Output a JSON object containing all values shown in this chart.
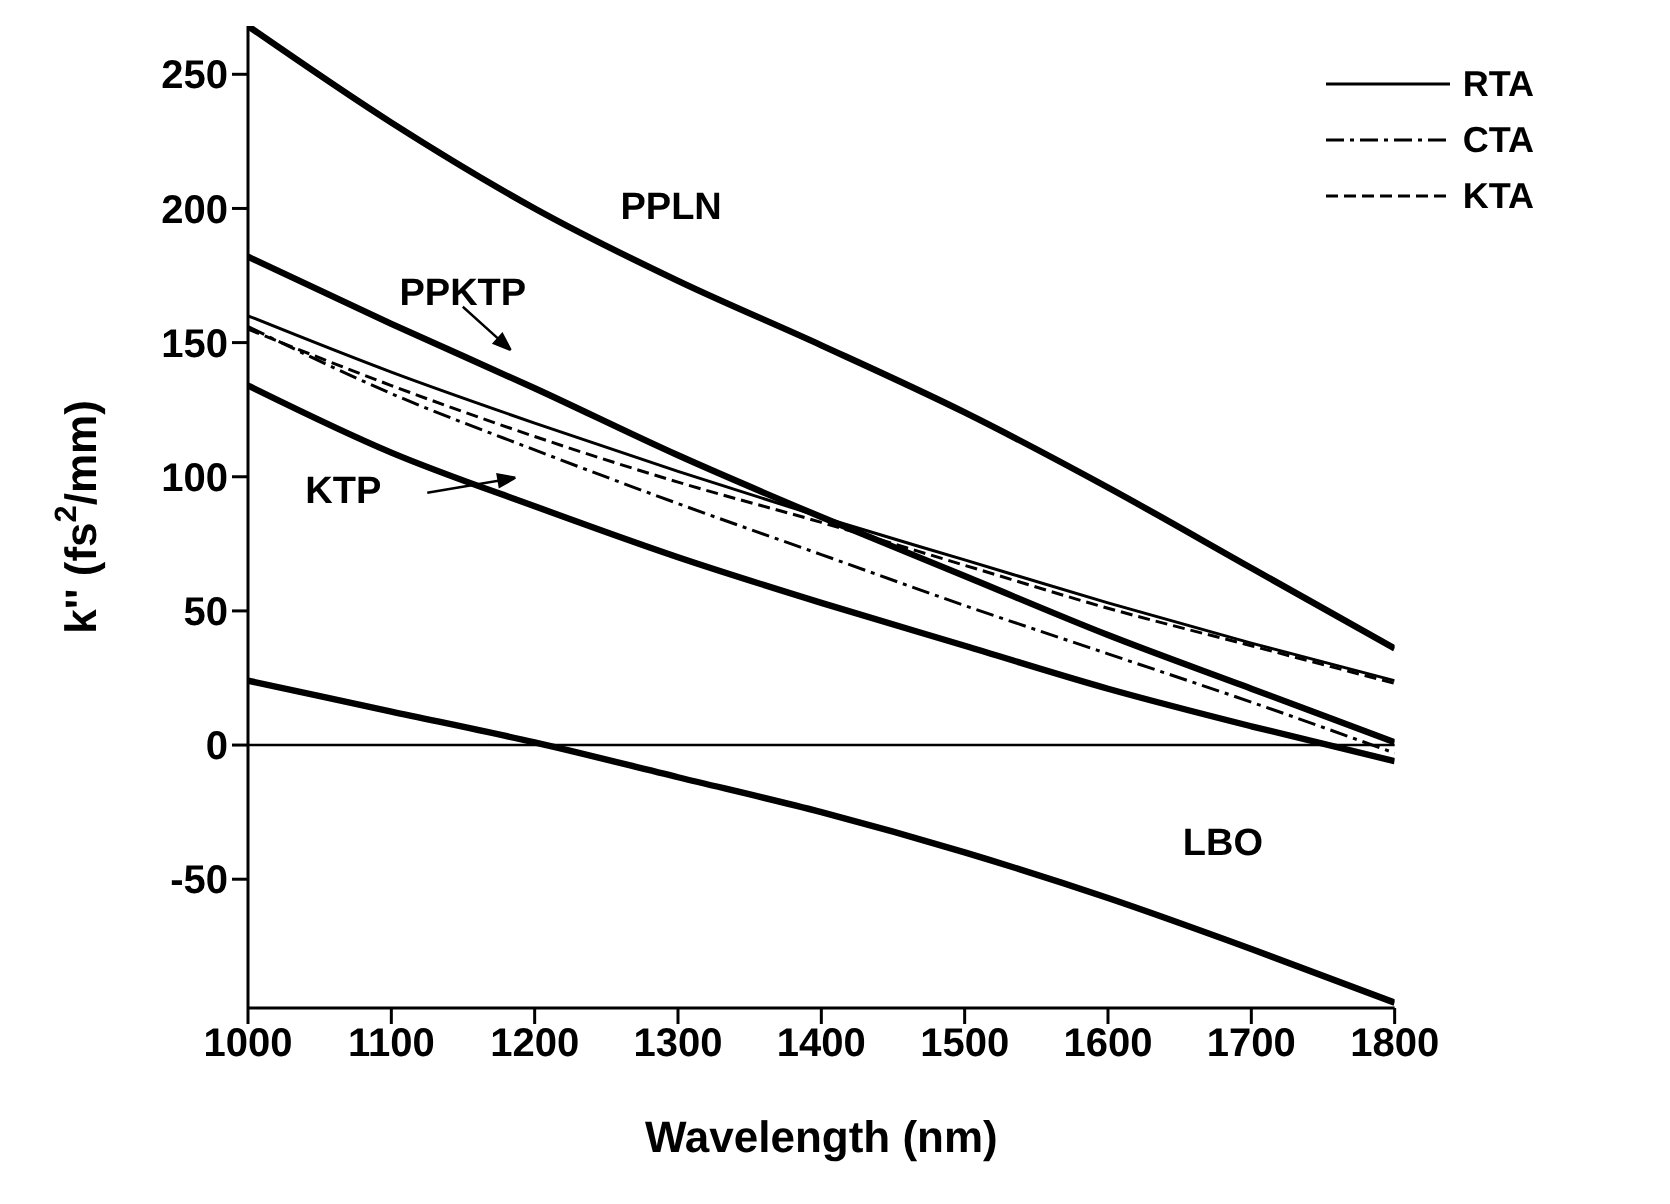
{
  "chart_data": {
    "type": "line",
    "xlabel": "Wavelength (nm)",
    "ylabel": "k'' (fs$^{2}$/mm)",
    "x": [
      1000,
      1100,
      1200,
      1300,
      1400,
      1500,
      1600,
      1700,
      1800
    ],
    "series": [
      {
        "color": "#000000",
        "line_style": "solid",
        "values": [
          268,
          232,
          200,
          173,
          149,
          124,
          96,
          66,
          36
        ]
      },
      {
        "color": "#000000",
        "line_style": "solid",
        "values": [
          182,
          157,
          133,
          108,
          85,
          63,
          41,
          21,
          1
        ]
      },
      {
        "name": "RTA",
        "color": "#000000",
        "line_style": "solid",
        "values": [
          160,
          139,
          120,
          102,
          85,
          69,
          53,
          38,
          24
        ]
      },
      {
        "name": "CTA",
        "color": "#000000",
        "line_style": "dashdot",
        "values": [
          156,
          131,
          110,
          90,
          71,
          52,
          34,
          16,
          -3
        ]
      },
      {
        "name": "KTA",
        "color": "#000000",
        "line_style": "dashed",
        "values": [
          155,
          134,
          115,
          98,
          83,
          67,
          51,
          37,
          23
        ]
      },
      {
        "color": "#000000",
        "line_style": "solid",
        "values": [
          134,
          109,
          89,
          70,
          53,
          37,
          21,
          7,
          -6
        ]
      },
      {
        "color": "#000000",
        "line_style": "solid",
        "values": [
          24,
          12.5,
          1,
          -12,
          -25,
          -40,
          -57,
          -76,
          -96
        ]
      }
    ],
    "annotations": [
      {
        "text": "PPLN",
        "x": 1250,
        "y": 188
      },
      {
        "text": "PPKTP",
        "x": 1160,
        "y": 141
      },
      {
        "text": "KTP",
        "x": 1165,
        "y": 97
      },
      {
        "text": "LBO",
        "x": 1576,
        "y": -55
      }
    ],
    "xlim": [
      1000,
      1800
    ],
    "ylim": [
      -98,
      268
    ],
    "xticks": [
      1000,
      1100,
      1200,
      1300,
      1400,
      1500,
      1600,
      1700,
      1800
    ],
    "yticks": [
      -50,
      0,
      50,
      100,
      150,
      200,
      250
    ],
    "ref_lines": [
      {
        "axis": "y",
        "value": 0,
        "color": "#000000"
      }
    ],
    "legend": "top right",
    "grid": false,
    "marker": "none"
  }
}
